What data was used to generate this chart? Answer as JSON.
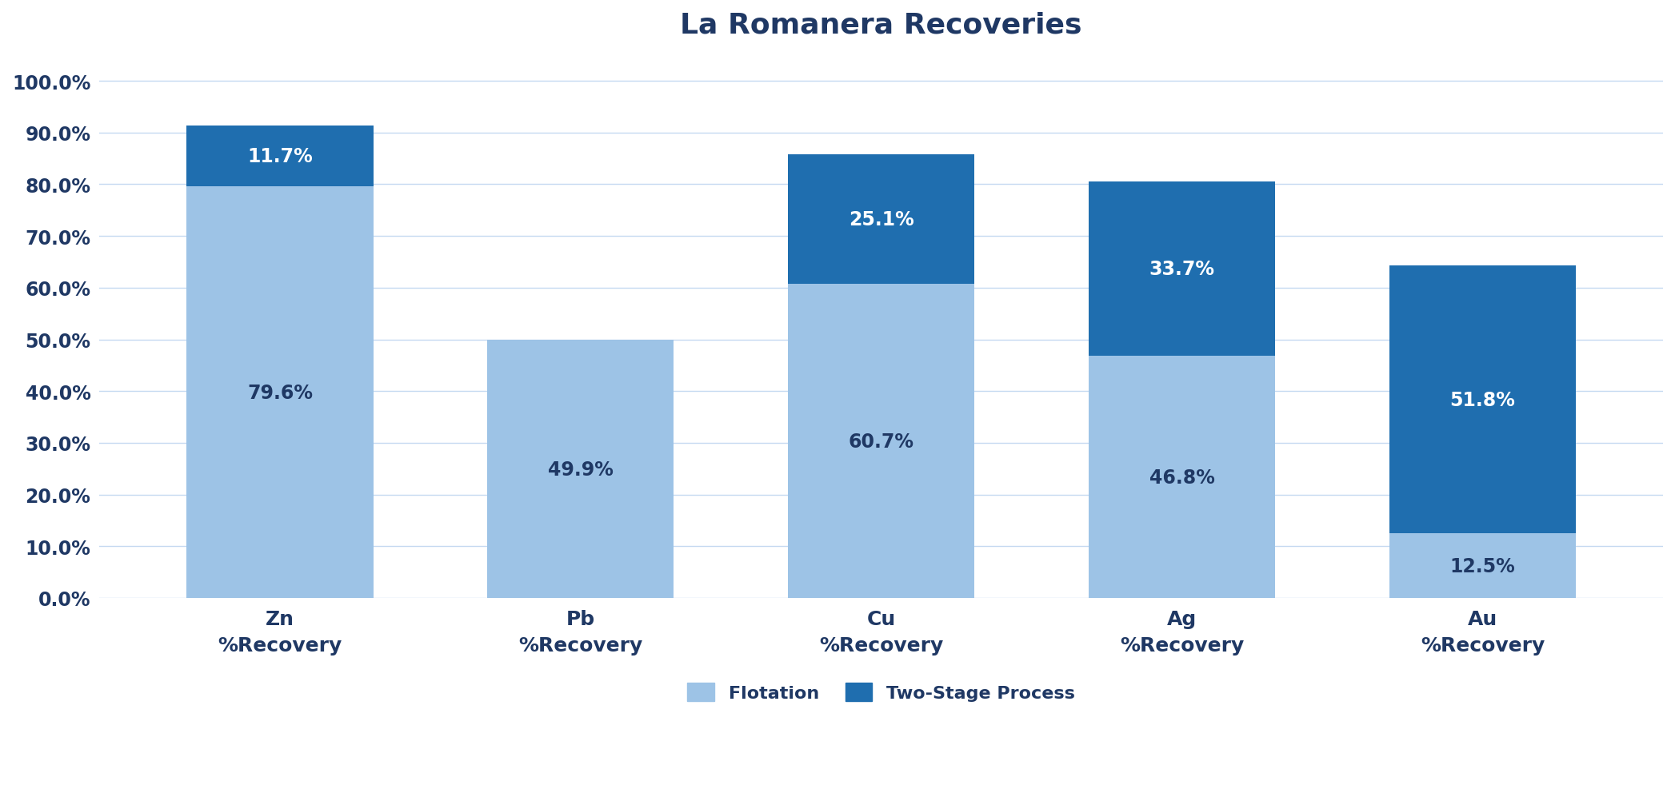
{
  "title": "La Romanera Recoveries",
  "categories": [
    "Zn\n%Recovery",
    "Pb\n%Recovery",
    "Cu\n%Recovery",
    "Ag\n%Recovery",
    "Au\n%Recovery"
  ],
  "flotation_values": [
    79.6,
    49.9,
    60.7,
    46.8,
    12.5
  ],
  "two_stage_values": [
    11.7,
    0.0,
    25.1,
    33.7,
    51.8
  ],
  "flotation_color": "#9dc3e6",
  "two_stage_color": "#1f6eaf",
  "title_color": "#1f3864",
  "label_color": "#1f3864",
  "tick_color": "#1f3864",
  "background_color": "#ffffff",
  "grid_color": "#c5d9f1",
  "ylim": [
    0,
    105
  ],
  "yticks": [
    0,
    10,
    20,
    30,
    40,
    50,
    60,
    70,
    80,
    90,
    100
  ],
  "ytick_labels": [
    "0.0%",
    "10.0%",
    "20.0%",
    "30.0%",
    "40.0%",
    "50.0%",
    "60.0%",
    "70.0%",
    "80.0%",
    "90.0%",
    "100.0%"
  ],
  "title_fontsize": 26,
  "tick_fontsize": 17,
  "label_fontsize": 18,
  "bar_label_fontsize": 17,
  "legend_fontsize": 16,
  "bar_width": 0.62,
  "legend_flotation": "Flotation",
  "legend_two_stage": "Two-Stage Process",
  "flotation_label_color": "#1f3864",
  "two_stage_label_color": "#ffffff"
}
